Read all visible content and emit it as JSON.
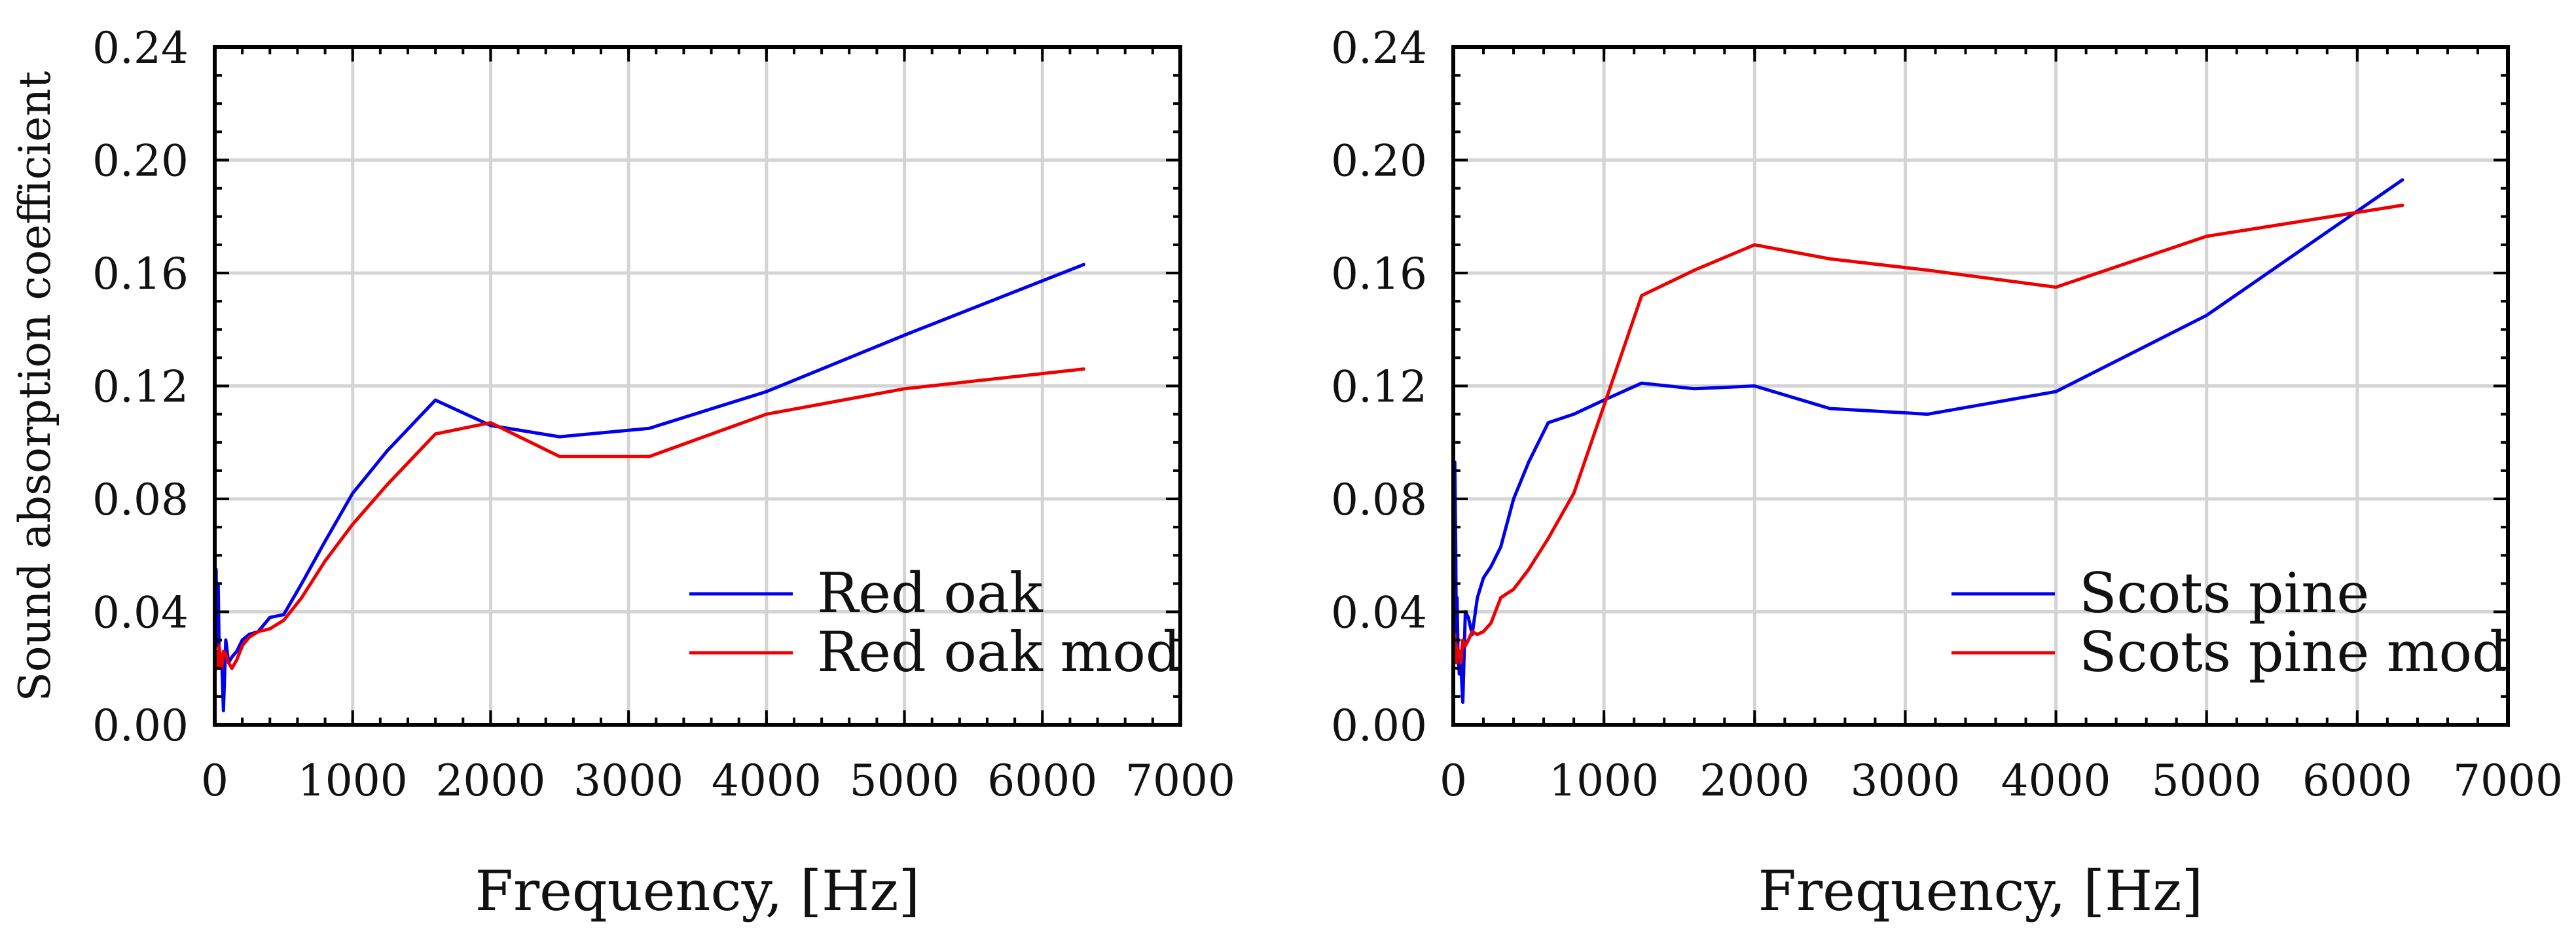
{
  "ylabel": "Sound absorption coefficient",
  "chart_data": [
    {
      "type": "line",
      "name": "red-oak",
      "xlabel": "Frequency, [Hz]",
      "xlim": [
        0,
        7000
      ],
      "ylim": [
        0,
        0.24
      ],
      "xticks": [
        "0",
        "1000",
        "2000",
        "3000",
        "4000",
        "5000",
        "6000",
        "7000"
      ],
      "yticks": [
        "0.00",
        "0.04",
        "0.08",
        "0.12",
        "0.16",
        "0.20",
        "0.24"
      ],
      "grid": true,
      "legend_position": "bottom-right",
      "series": [
        {
          "name": "Red oak",
          "color": "#0000ee",
          "x": [
            10,
            16,
            20,
            25,
            31.5,
            40,
            50,
            63,
            80,
            100,
            125,
            160,
            200,
            250,
            315,
            400,
            500,
            630,
            800,
            1000,
            1250,
            1600,
            2000,
            2500,
            3150,
            4000,
            5000,
            6300
          ],
          "y": [
            0.055,
            0.03,
            0.028,
            0.05,
            0.028,
            0.02,
            0.025,
            0.005,
            0.03,
            0.022,
            0.024,
            0.026,
            0.03,
            0.032,
            0.033,
            0.038,
            0.039,
            0.05,
            0.065,
            0.082,
            0.097,
            0.115,
            0.106,
            0.102,
            0.105,
            0.118,
            0.138,
            0.163
          ]
        },
        {
          "name": "Red oak mod",
          "color": "#ee0000",
          "x": [
            10,
            16,
            20,
            25,
            31.5,
            40,
            50,
            63,
            80,
            100,
            125,
            160,
            200,
            250,
            315,
            400,
            500,
            630,
            800,
            1000,
            1250,
            1600,
            2000,
            2500,
            3150,
            4000,
            5000,
            6300
          ],
          "y": [
            0.026,
            0.02,
            0.025,
            0.02,
            0.028,
            0.024,
            0.02,
            0.026,
            0.025,
            0.022,
            0.02,
            0.023,
            0.028,
            0.031,
            0.033,
            0.034,
            0.037,
            0.045,
            0.058,
            0.071,
            0.085,
            0.103,
            0.107,
            0.095,
            0.095,
            0.11,
            0.119,
            0.126
          ]
        }
      ]
    },
    {
      "type": "line",
      "name": "scots-pine",
      "xlabel": "Frequency, [Hz]",
      "xlim": [
        0,
        7000
      ],
      "ylim": [
        0,
        0.24
      ],
      "xticks": [
        "0",
        "1000",
        "2000",
        "3000",
        "4000",
        "5000",
        "6000",
        "7000"
      ],
      "yticks": [
        "0.00",
        "0.04",
        "0.08",
        "0.12",
        "0.16",
        "0.20",
        "0.24"
      ],
      "grid": true,
      "legend_position": "bottom-right",
      "series": [
        {
          "name": "Scots pine",
          "color": "#0000ee",
          "x": [
            10,
            16,
            20,
            25,
            31.5,
            40,
            50,
            63,
            80,
            100,
            125,
            160,
            200,
            250,
            315,
            400,
            500,
            630,
            800,
            1000,
            1250,
            1600,
            2000,
            2500,
            3150,
            4000,
            5000,
            6300
          ],
          "y": [
            0.093,
            0.062,
            0.03,
            0.045,
            0.025,
            0.018,
            0.022,
            0.008,
            0.04,
            0.038,
            0.032,
            0.045,
            0.052,
            0.056,
            0.063,
            0.08,
            0.093,
            0.107,
            0.11,
            0.115,
            0.121,
            0.119,
            0.12,
            0.112,
            0.11,
            0.118,
            0.145,
            0.193
          ]
        },
        {
          "name": "Scots pine mod",
          "color": "#ee0000",
          "x": [
            10,
            16,
            20,
            25,
            31.5,
            40,
            50,
            63,
            80,
            100,
            125,
            160,
            200,
            250,
            315,
            400,
            500,
            630,
            800,
            1000,
            1250,
            1600,
            2000,
            2500,
            3150,
            4000,
            5000,
            6300
          ],
          "y": [
            0.032,
            0.026,
            0.022,
            0.028,
            0.024,
            0.026,
            0.022,
            0.03,
            0.028,
            0.03,
            0.033,
            0.032,
            0.033,
            0.036,
            0.045,
            0.048,
            0.055,
            0.066,
            0.082,
            0.113,
            0.152,
            0.161,
            0.17,
            0.165,
            0.161,
            0.155,
            0.173,
            0.184
          ]
        }
      ]
    }
  ]
}
